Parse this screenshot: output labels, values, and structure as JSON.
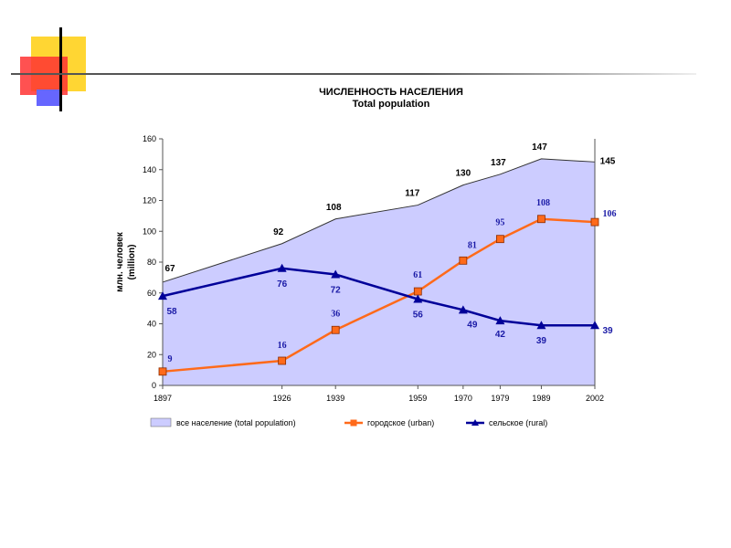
{
  "colors": {
    "total_fill": "#ccccff",
    "total_line": "#333333",
    "urban": "#ff6a1a",
    "rural": "#000099",
    "deco_yellow": "#ffd633",
    "deco_red": "#ff3333",
    "deco_blue": "#6666ff",
    "deco_rule": "#555555"
  },
  "chart_data": {
    "type": "area",
    "title": "ЧИСЛЕННОСТЬ НАСЕЛЕНИЯ",
    "subtitle": "Total population",
    "ylabel_line1": "млн. человек",
    "ylabel_line2": "(million)",
    "categories": [
      "1897",
      "1926",
      "1939",
      "1959",
      "1970",
      "1979",
      "1989",
      "2002"
    ],
    "x_values": [
      1897,
      1926,
      1939,
      1959,
      1970,
      1979,
      1989,
      2002
    ],
    "ylim": [
      0,
      160
    ],
    "yticks": [
      "0",
      "20",
      "40",
      "60",
      "80",
      "100",
      "120",
      "140",
      "160"
    ],
    "grid": false,
    "legend_position": "bottom",
    "series": [
      {
        "key": "total",
        "name": "все население     (total population)",
        "kind": "area",
        "values": [
          67,
          92,
          108,
          117,
          130,
          137,
          147,
          145
        ],
        "labels": [
          "67",
          "92",
          "108",
          "117",
          "130",
          "137",
          "147",
          "145"
        ]
      },
      {
        "key": "urban",
        "name": "городское     (urban)",
        "kind": "line",
        "marker": "square",
        "values": [
          9,
          16,
          36,
          61,
          81,
          95,
          108,
          106
        ],
        "labels": [
          "9",
          "16",
          "36",
          "61",
          "81",
          "95",
          "108",
          "106"
        ]
      },
      {
        "key": "rural",
        "name": "сельское   (rural)",
        "kind": "line",
        "marker": "triangle",
        "values": [
          58,
          76,
          72,
          56,
          49,
          42,
          39,
          39
        ],
        "labels": [
          "58",
          "76",
          "72",
          "56",
          "49",
          "42",
          "39",
          "39"
        ]
      }
    ]
  }
}
